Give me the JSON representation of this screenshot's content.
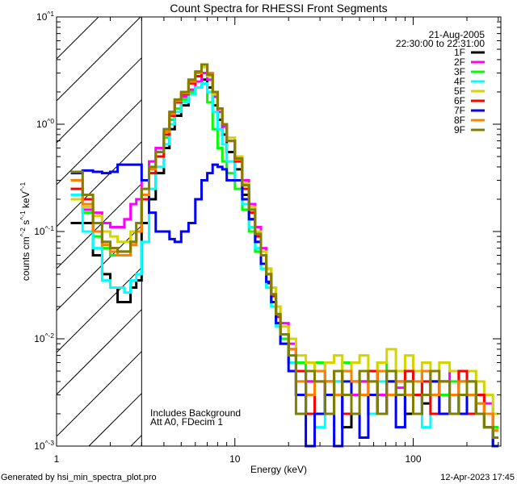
{
  "chart_data": {
    "type": "line",
    "title": "Count Spectra for RHESSI Front Segments",
    "xlabel": "Energy (keV)",
    "ylabel": "counts cm^-2 s^-1 keV^-1",
    "xscale": "log",
    "yscale": "log",
    "xlim": [
      1,
      310
    ],
    "ylim": [
      0.001,
      10
    ],
    "x_ticks": [
      {
        "value": 1,
        "label": "1"
      },
      {
        "value": 10,
        "label": "10"
      },
      {
        "value": 100,
        "label": "100"
      }
    ],
    "y_ticks": [
      {
        "value": 10,
        "label": "10^1"
      },
      {
        "value": 1,
        "label": "10^0"
      },
      {
        "value": 0.1,
        "label": "10^-1"
      },
      {
        "value": 0.01,
        "label": "10^-2"
      },
      {
        "value": 0.001,
        "label": "10^-3"
      }
    ],
    "shaded_region": {
      "x_from": 1,
      "x_to": 3,
      "style": "hatched"
    },
    "date": "21-Aug-2005",
    "time_range": "22:30:00 to 22:31:00",
    "annotations": [
      "Includes Background",
      "Att A0, FDecim 1"
    ],
    "legend_position": "top-right",
    "energy_bin_edges": [
      1.2,
      1.4,
      1.6,
      1.8,
      2.0,
      2.2,
      2.4,
      2.6,
      2.8,
      3.0,
      3.3,
      3.6,
      4.0,
      4.3,
      4.6,
      5.0,
      5.5,
      6.0,
      6.5,
      7.0,
      7.5,
      8,
      8.5,
      9,
      10,
      11,
      12,
      13,
      14,
      15,
      16,
      17,
      18,
      20,
      22,
      25,
      28,
      32,
      36,
      40,
      45,
      50,
      56,
      63,
      71,
      80,
      90,
      100,
      112,
      125,
      140,
      160,
      180,
      200,
      225,
      250,
      280,
      300
    ],
    "series": [
      {
        "name": "1F",
        "color": "#000000",
        "values": [
          0.12,
          0.12,
          0.06,
          0.04,
          0.03,
          0.022,
          0.022,
          0.03,
          0.035,
          0.12,
          0.2,
          0.35,
          0.6,
          0.9,
          1.2,
          1.5,
          1.9,
          2.2,
          2.6,
          2.2,
          1.5,
          1.1,
          0.8,
          0.55,
          0.38,
          0.22,
          0.13,
          0.08,
          0.05,
          0.033,
          0.022,
          0.014,
          0.01,
          0.006,
          0.003,
          0.004,
          0.002,
          0.004,
          0.003,
          0.0015,
          0.003,
          0.004,
          0.002,
          0.005,
          0.003,
          0.004,
          0.002,
          0.003,
          0.0025,
          0.004,
          0.003,
          0.002,
          0.004,
          0.003,
          0.002,
          0.0015,
          0.001
        ]
      },
      {
        "name": "2F",
        "color": "#ff00ff",
        "values": [
          0.22,
          0.16,
          0.15,
          0.12,
          0.11,
          0.11,
          0.13,
          0.18,
          0.2,
          0.3,
          0.45,
          0.6,
          0.9,
          1.3,
          1.6,
          1.8,
          2.1,
          2.5,
          3.0,
          2.6,
          1.8,
          1.3,
          0.95,
          0.7,
          0.5,
          0.3,
          0.18,
          0.11,
          0.07,
          0.045,
          0.03,
          0.02,
          0.014,
          0.009,
          0.006,
          0.004,
          0.005,
          0.003,
          0.004,
          0.005,
          0.003,
          0.004,
          0.005,
          0.003,
          0.004,
          0.0035,
          0.004,
          0.003,
          0.005,
          0.003,
          0.004,
          0.005,
          0.003,
          0.004,
          0.003,
          0.0025,
          0.0015
        ]
      },
      {
        "name": "3F",
        "color": "#00ff00",
        "values": [
          0.22,
          0.15,
          0.09,
          0.07,
          0.06,
          0.06,
          0.06,
          0.08,
          0.1,
          0.2,
          0.35,
          0.5,
          0.75,
          1.1,
          1.4,
          1.7,
          2.0,
          2.2,
          2.4,
          1.6,
          0.9,
          0.6,
          0.45,
          0.35,
          0.25,
          0.16,
          0.1,
          0.065,
          0.045,
          0.03,
          0.02,
          0.014,
          0.01,
          0.008,
          0.006,
          0.005,
          0.006,
          0.004,
          0.005,
          0.006,
          0.004,
          0.005,
          0.004,
          0.006,
          0.004,
          0.005,
          0.004,
          0.003,
          0.005,
          0.004,
          0.003,
          0.004,
          0.003,
          0.004,
          0.003,
          0.002,
          0.0015
        ]
      },
      {
        "name": "4F",
        "color": "#00ffff",
        "values": [
          0.22,
          0.1,
          0.07,
          0.035,
          0.03,
          0.03,
          0.027,
          0.035,
          0.04,
          0.08,
          0.25,
          0.4,
          0.65,
          1.0,
          1.3,
          1.6,
          1.9,
          2.2,
          2.4,
          2.0,
          1.3,
          0.9,
          0.65,
          0.45,
          0.3,
          0.18,
          0.11,
          0.07,
          0.045,
          0.03,
          0.02,
          0.013,
          0.009,
          0.006,
          0.004,
          0.002,
          0.0015,
          0.003,
          0.004,
          0.002,
          0.004,
          0.003,
          0.002,
          0.004,
          0.005,
          0.003,
          0.004,
          0.003,
          0.0015,
          0.003,
          0.004,
          0.003,
          0.002,
          0.003,
          0.0025,
          0.002,
          0.0012
        ]
      },
      {
        "name": "5F",
        "color": "#d4d400",
        "values": [
          0.2,
          0.17,
          0.14,
          0.1,
          0.09,
          0.08,
          0.08,
          0.1,
          0.12,
          0.25,
          0.4,
          0.55,
          0.85,
          1.3,
          1.7,
          2.0,
          2.6,
          3.0,
          3.4,
          2.8,
          1.9,
          1.4,
          1.0,
          0.75,
          0.5,
          0.28,
          0.17,
          0.1,
          0.065,
          0.045,
          0.03,
          0.02,
          0.013,
          0.01,
          0.007,
          0.006,
          0.005,
          0.006,
          0.007,
          0.005,
          0.006,
          0.007,
          0.005,
          0.006,
          0.008,
          0.005,
          0.007,
          0.005,
          0.006,
          0.005,
          0.006,
          0.005,
          0.004,
          0.005,
          0.004,
          0.003,
          0.002
        ]
      },
      {
        "name": "6F",
        "color": "#ff0000",
        "values": [
          0.25,
          0.2,
          0.1,
          0.08,
          0.07,
          0.065,
          0.065,
          0.08,
          0.1,
          0.2,
          0.35,
          0.5,
          0.8,
          1.2,
          1.6,
          1.9,
          2.4,
          2.8,
          3.6,
          3.0,
          2.0,
          1.4,
          1.0,
          0.7,
          0.45,
          0.25,
          0.15,
          0.09,
          0.06,
          0.04,
          0.025,
          0.016,
          0.011,
          0.008,
          0.005,
          0.002,
          0.004,
          0.003,
          0.005,
          0.002,
          0.004,
          0.003,
          0.005,
          0.002,
          0.004,
          0.003,
          0.005,
          0.003,
          0.004,
          0.002,
          0.004,
          0.003,
          0.005,
          0.002,
          0.003,
          0.002,
          0.0012
        ]
      },
      {
        "name": "7F",
        "color": "#0000ff",
        "values": [
          0.35,
          0.37,
          0.36,
          0.35,
          0.36,
          0.42,
          0.42,
          0.42,
          0.42,
          0.3,
          0.15,
          0.1,
          0.1,
          0.085,
          0.08,
          0.1,
          0.12,
          0.2,
          0.3,
          0.35,
          0.42,
          0.4,
          0.38,
          0.3,
          0.3,
          0.2,
          0.13,
          0.08,
          0.05,
          0.034,
          0.022,
          0.014,
          0.009,
          0.005,
          0.003,
          0.0008,
          0.002,
          0.003,
          0.001,
          0.004,
          0.002,
          0.0012,
          0.003,
          0.002,
          0.004,
          0.0015,
          0.003,
          0.002,
          0.003,
          0.004,
          0.002,
          0.003,
          0.002,
          0.003,
          0.002,
          0.0015,
          0.001
        ]
      },
      {
        "name": "8F",
        "color": "#ff8000",
        "values": [
          0.3,
          0.18,
          0.1,
          0.075,
          0.065,
          0.06,
          0.06,
          0.075,
          0.1,
          0.22,
          0.38,
          0.55,
          0.85,
          1.25,
          1.65,
          1.95,
          2.5,
          3.0,
          3.6,
          3.0,
          2.0,
          1.4,
          1.0,
          0.7,
          0.47,
          0.27,
          0.16,
          0.095,
          0.06,
          0.04,
          0.026,
          0.017,
          0.011,
          0.008,
          0.004,
          0.003,
          0.005,
          0.004,
          0.003,
          0.005,
          0.004,
          0.003,
          0.004,
          0.005,
          0.003,
          0.004,
          0.003,
          0.004,
          0.005,
          0.003,
          0.004,
          0.003,
          0.004,
          0.003,
          0.0025,
          0.002,
          0.0014
        ]
      },
      {
        "name": "9F",
        "color": "#808000",
        "values": [
          0.36,
          0.22,
          0.12,
          0.08,
          0.07,
          0.065,
          0.065,
          0.08,
          0.12,
          0.25,
          0.4,
          0.55,
          0.9,
          1.3,
          1.7,
          2.0,
          2.6,
          3.1,
          3.6,
          2.9,
          2.0,
          1.4,
          1.0,
          0.7,
          0.48,
          0.27,
          0.16,
          0.095,
          0.06,
          0.04,
          0.026,
          0.017,
          0.011,
          0.007,
          0.002,
          0.005,
          0.004,
          0.002,
          0.005,
          0.003,
          0.002,
          0.005,
          0.004,
          0.002,
          0.005,
          0.003,
          0.004,
          0.002,
          0.003,
          0.005,
          0.004,
          0.002,
          0.003,
          0.004,
          0.002,
          0.0015,
          0.0012
        ]
      }
    ]
  },
  "footer": {
    "generated_by": "Generated by hsi_min_spectra_plot.pro",
    "timestamp": "12-Apr-2023 17:45"
  }
}
